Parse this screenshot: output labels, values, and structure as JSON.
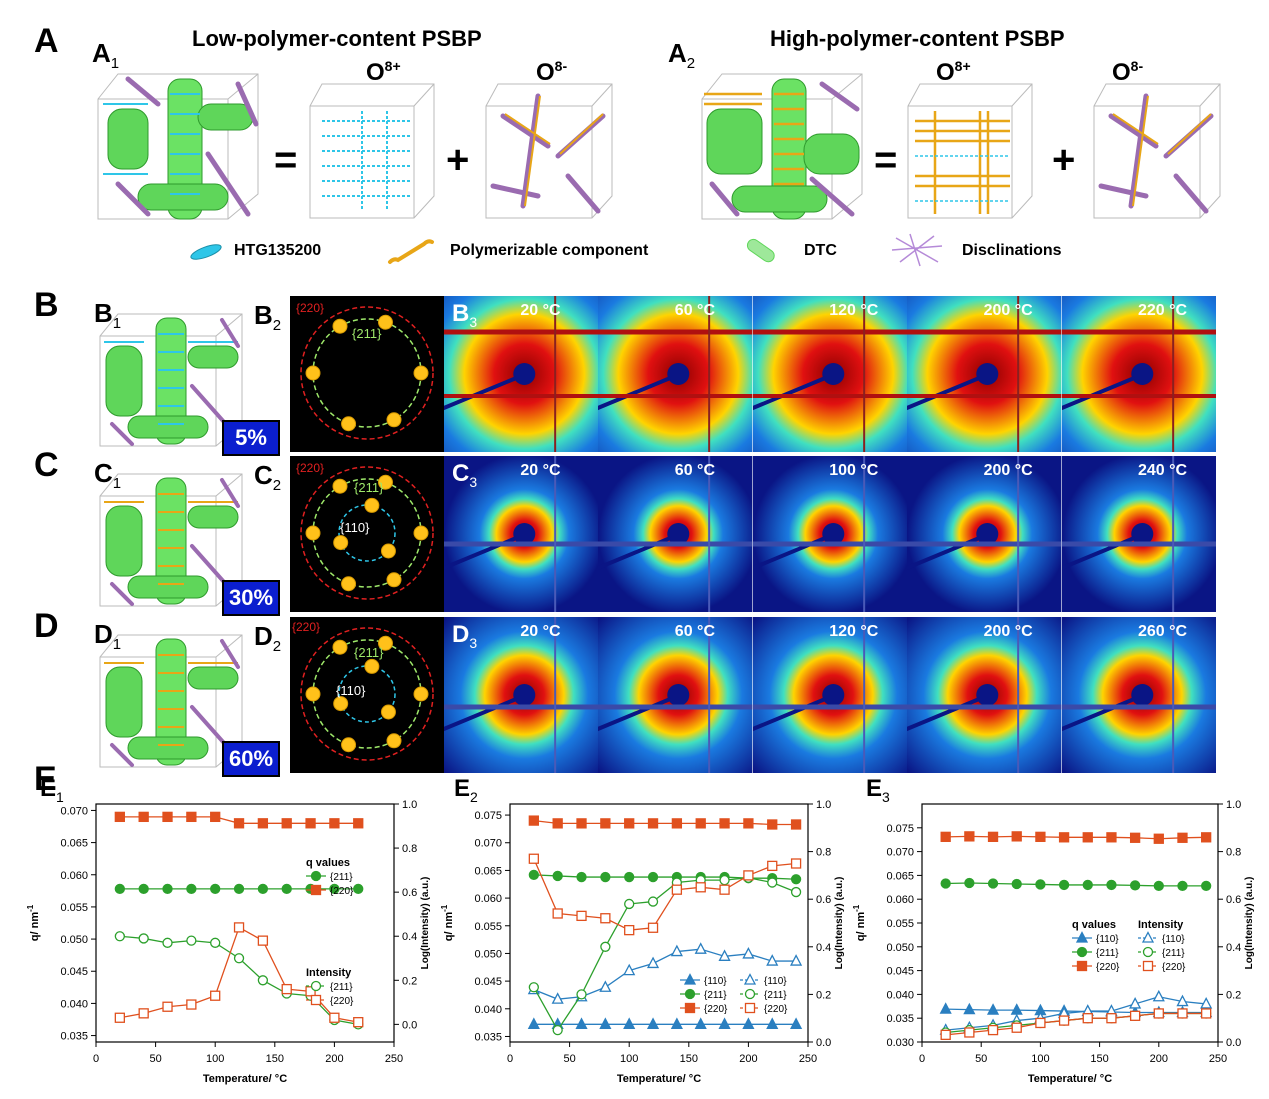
{
  "panel_letters": {
    "A": "A",
    "B": "B",
    "C": "C",
    "D": "D",
    "E": "E"
  },
  "section_a": {
    "a1": {
      "letter": "A",
      "sub": "1",
      "title": "Low-polymer-content PSBP"
    },
    "a2": {
      "letter": "A",
      "sub": "2",
      "title": "High-polymer-content PSBP"
    },
    "o_plus": {
      "base": "O",
      "sup": "8+"
    },
    "o_minus": {
      "base": "O",
      "sup": "8-"
    },
    "equals": "=",
    "plus": "+",
    "legend": [
      {
        "label": "HTG135200",
        "icon": "liquid-crystal-molecule-icon",
        "color": "#2ec6e8"
      },
      {
        "label": "Polymerizable component",
        "icon": "polymer-chain-icon",
        "color": "#e8a617"
      },
      {
        "label": "DTC",
        "icon": "double-twist-cylinder-icon",
        "color": "#5fd65a"
      },
      {
        "label": "Disclinations",
        "icon": "disclination-network-icon",
        "color": "#b58ad8"
      }
    ]
  },
  "rows": [
    {
      "letter": "B",
      "cube_label": {
        "letter": "B",
        "sub": "1"
      },
      "recip_label": {
        "letter": "B",
        "sub": "2"
      },
      "scatter_label": {
        "letter": "B",
        "sub": "3"
      },
      "percent": "5%",
      "recip": {
        "outer": "{220}",
        "mid": "{211}",
        "inner": ""
      },
      "temps": [
        "20 °C",
        "60 °C",
        "120 °C",
        "200 °C",
        "220 °C"
      ]
    },
    {
      "letter": "C",
      "cube_label": {
        "letter": "C",
        "sub": "1"
      },
      "recip_label": {
        "letter": "C",
        "sub": "2"
      },
      "scatter_label": {
        "letter": "C",
        "sub": "3"
      },
      "percent": "30%",
      "recip": {
        "outer": "{220}",
        "mid": "{211}",
        "inner": "{110}"
      },
      "temps": [
        "20 °C",
        "60 °C",
        "100 °C",
        "200 °C",
        "240 °C"
      ]
    },
    {
      "letter": "D",
      "cube_label": {
        "letter": "D",
        "sub": "1"
      },
      "recip_label": {
        "letter": "D",
        "sub": "2"
      },
      "scatter_label": {
        "letter": "D",
        "sub": "3"
      },
      "percent": "60%",
      "recip": {
        "outer": "{220}",
        "mid": "{211}",
        "inner": "{110}"
      },
      "temps": [
        "20 °C",
        "60 °C",
        "120 °C",
        "200 °C",
        "260 °C"
      ]
    }
  ],
  "chart_data": [
    {
      "type": "line",
      "panel": {
        "letter": "E",
        "sub": "1"
      },
      "xlabel": "Temperature/ °C",
      "ylabel_left": "q/ nm",
      "ylabel_left_sup": "-1",
      "ylabel_right": "Log(Intensity) (a.u.)",
      "xlim": [
        0,
        250
      ],
      "ylim_left": [
        0.034,
        0.071
      ],
      "ylim_right": [
        -0.08,
        1.0
      ],
      "xticks": [
        0,
        50,
        100,
        150,
        200,
        250
      ],
      "yticks_left": [
        0.035,
        0.04,
        0.045,
        0.05,
        0.055,
        0.06,
        0.065,
        0.07
      ],
      "yticks_right": [
        0.0,
        0.2,
        0.4,
        0.6,
        0.8,
        1.0
      ],
      "legends": [
        {
          "title": "q values",
          "position": "upper-right",
          "entries": [
            {
              "label": "{211}",
              "color": "#2ca02c",
              "marker": "circle",
              "filled": true
            },
            {
              "label": "{220}",
              "color": "#e0501e",
              "marker": "square",
              "filled": true
            }
          ]
        },
        {
          "title": "Intensity",
          "position": "middle-right",
          "entries": [
            {
              "label": "{211}",
              "color": "#2ca02c",
              "marker": "circle",
              "filled": false
            },
            {
              "label": "{220}",
              "color": "#e0501e",
              "marker": "square",
              "filled": false
            }
          ]
        }
      ],
      "series": [
        {
          "name": "{211}",
          "axis": "left",
          "color": "#2ca02c",
          "marker": "circle",
          "filled": true,
          "x": [
            20,
            40,
            60,
            80,
            100,
            120,
            140,
            160,
            180,
            200,
            220
          ],
          "y": [
            0.0578,
            0.0578,
            0.0578,
            0.0578,
            0.0578,
            0.0578,
            0.0578,
            0.0578,
            0.0578,
            0.0578,
            0.0578
          ]
        },
        {
          "name": "{220}",
          "axis": "left",
          "color": "#e0501e",
          "marker": "square",
          "filled": true,
          "x": [
            20,
            40,
            60,
            80,
            100,
            120,
            140,
            160,
            180,
            200,
            220
          ],
          "y": [
            0.069,
            0.069,
            0.069,
            0.069,
            0.069,
            0.068,
            0.068,
            0.068,
            0.068,
            0.068,
            0.068
          ]
        },
        {
          "name": "{211}",
          "axis": "right",
          "color": "#2ca02c",
          "marker": "circle",
          "filled": false,
          "x": [
            20,
            40,
            60,
            80,
            100,
            120,
            140,
            160,
            180,
            200,
            220
          ],
          "y": [
            0.4,
            0.39,
            0.37,
            0.38,
            0.37,
            0.3,
            0.2,
            0.14,
            0.13,
            0.02,
            0.0
          ]
        },
        {
          "name": "{220}",
          "axis": "right",
          "color": "#e0501e",
          "marker": "square",
          "filled": false,
          "x": [
            20,
            40,
            60,
            80,
            100,
            120,
            140,
            160,
            180,
            200,
            220
          ],
          "y": [
            0.03,
            0.05,
            0.08,
            0.09,
            0.13,
            0.44,
            0.38,
            0.16,
            0.15,
            0.03,
            0.01
          ]
        }
      ]
    },
    {
      "type": "line",
      "panel": {
        "letter": "E",
        "sub": "2"
      },
      "xlabel": "Temperature/ °C",
      "ylabel_left": "q/ nm",
      "ylabel_left_sup": "-1",
      "ylabel_right": "Log(Intensity) (a.u.)",
      "xlim": [
        0,
        250
      ],
      "ylim_left": [
        0.034,
        0.077
      ],
      "ylim_right": [
        0.0,
        1.0
      ],
      "xticks": [
        0,
        50,
        100,
        150,
        200,
        250
      ],
      "yticks_left": [
        0.035,
        0.04,
        0.045,
        0.05,
        0.055,
        0.06,
        0.065,
        0.07,
        0.075
      ],
      "yticks_right": [
        0.0,
        0.2,
        0.4,
        0.6,
        0.8,
        1.0
      ],
      "legends": [
        {
          "title": "",
          "position": "lower-right",
          "entries": [
            {
              "label": "{110}",
              "color": "#2a7fc0",
              "marker": "triangle",
              "filled": true
            },
            {
              "label": "{110}",
              "color": "#2a7fc0",
              "marker": "triangle",
              "filled": false
            },
            {
              "label": "{211}",
              "color": "#2ca02c",
              "marker": "circle",
              "filled": true
            },
            {
              "label": "{211}",
              "color": "#2ca02c",
              "marker": "circle",
              "filled": false
            },
            {
              "label": "{220}",
              "color": "#e0501e",
              "marker": "square",
              "filled": true
            },
            {
              "label": "{220}",
              "color": "#e0501e",
              "marker": "square",
              "filled": false
            }
          ]
        }
      ],
      "series": [
        {
          "name": "{110}",
          "axis": "left",
          "color": "#2a7fc0",
          "marker": "triangle",
          "filled": true,
          "x": [
            20,
            40,
            60,
            80,
            100,
            120,
            140,
            160,
            180,
            200,
            220,
            240
          ],
          "y": [
            0.0372,
            0.0372,
            0.0372,
            0.0372,
            0.0372,
            0.0372,
            0.0372,
            0.0372,
            0.0372,
            0.0372,
            0.0372,
            0.0372
          ]
        },
        {
          "name": "{211}",
          "axis": "left",
          "color": "#2ca02c",
          "marker": "circle",
          "filled": true,
          "x": [
            20,
            40,
            60,
            80,
            100,
            120,
            140,
            160,
            180,
            200,
            220,
            240
          ],
          "y": [
            0.0642,
            0.064,
            0.0638,
            0.0638,
            0.0638,
            0.0638,
            0.0638,
            0.0638,
            0.0638,
            0.0636,
            0.0636,
            0.0634
          ]
        },
        {
          "name": "{220}",
          "axis": "left",
          "color": "#e0501e",
          "marker": "square",
          "filled": true,
          "x": [
            20,
            40,
            60,
            80,
            100,
            120,
            140,
            160,
            180,
            200,
            220,
            240
          ],
          "y": [
            0.074,
            0.0735,
            0.0735,
            0.0735,
            0.0735,
            0.0735,
            0.0735,
            0.0735,
            0.0735,
            0.0735,
            0.0733,
            0.0733
          ]
        },
        {
          "name": "{110}",
          "axis": "right",
          "color": "#2a7fc0",
          "marker": "triangle",
          "filled": false,
          "x": [
            20,
            40,
            60,
            80,
            100,
            120,
            140,
            160,
            180,
            200,
            220,
            240
          ],
          "y": [
            0.22,
            0.18,
            0.19,
            0.23,
            0.3,
            0.33,
            0.38,
            0.39,
            0.36,
            0.37,
            0.34,
            0.34
          ]
        },
        {
          "name": "{211}",
          "axis": "right",
          "color": "#2ca02c",
          "marker": "circle",
          "filled": false,
          "x": [
            20,
            40,
            60,
            80,
            100,
            120,
            140,
            160,
            180,
            200,
            220,
            240
          ],
          "y": [
            0.23,
            0.05,
            0.2,
            0.4,
            0.58,
            0.59,
            0.67,
            0.68,
            0.68,
            0.69,
            0.67,
            0.63
          ]
        },
        {
          "name": "{220}",
          "axis": "right",
          "color": "#e0501e",
          "marker": "square",
          "filled": false,
          "x": [
            20,
            40,
            60,
            80,
            100,
            120,
            140,
            160,
            180,
            200,
            220,
            240
          ],
          "y": [
            0.77,
            0.54,
            0.53,
            0.52,
            0.47,
            0.48,
            0.64,
            0.65,
            0.64,
            0.7,
            0.74,
            0.75
          ]
        }
      ]
    },
    {
      "type": "line",
      "panel": {
        "letter": "E",
        "sub": "3"
      },
      "xlabel": "Temperature/ °C",
      "ylabel_left": "q/ nm",
      "ylabel_left_sup": "-1",
      "ylabel_right": "Log(Intensity) (a.u.)",
      "xlim": [
        0,
        250
      ],
      "ylim_left": [
        0.03,
        0.08
      ],
      "ylim_right": [
        0.0,
        1.0
      ],
      "xticks": [
        0,
        50,
        100,
        150,
        200,
        250
      ],
      "yticks_left": [
        0.03,
        0.035,
        0.04,
        0.045,
        0.05,
        0.055,
        0.06,
        0.065,
        0.07,
        0.075
      ],
      "yticks_right": [
        0.0,
        0.2,
        0.4,
        0.6,
        0.8,
        1.0
      ],
      "legends": [
        {
          "title": "q values",
          "position": "middle-center",
          "entries": [
            {
              "label": "{110}",
              "color": "#2a7fc0",
              "marker": "triangle",
              "filled": true
            },
            {
              "label": "{211}",
              "color": "#2ca02c",
              "marker": "circle",
              "filled": true
            },
            {
              "label": "{220}",
              "color": "#e0501e",
              "marker": "square",
              "filled": true
            }
          ]
        },
        {
          "title": "Intensity",
          "position": "middle-right",
          "entries": [
            {
              "label": "{110}",
              "color": "#2a7fc0",
              "marker": "triangle",
              "filled": false
            },
            {
              "label": "{211}",
              "color": "#2ca02c",
              "marker": "circle",
              "filled": false
            },
            {
              "label": "{220}",
              "color": "#e0501e",
              "marker": "square",
              "filled": false
            }
          ]
        }
      ],
      "series": [
        {
          "name": "{110}",
          "axis": "left",
          "color": "#2a7fc0",
          "marker": "triangle",
          "filled": true,
          "x": [
            20,
            40,
            60,
            80,
            100,
            120,
            140,
            160,
            180,
            200,
            220,
            240
          ],
          "y": [
            0.0369,
            0.0368,
            0.0367,
            0.0367,
            0.0366,
            0.0365,
            0.0364,
            0.0363,
            0.0362,
            0.0362,
            0.0362,
            0.0362
          ]
        },
        {
          "name": "{211}",
          "axis": "left",
          "color": "#2ca02c",
          "marker": "circle",
          "filled": true,
          "x": [
            20,
            40,
            60,
            80,
            100,
            120,
            140,
            160,
            180,
            200,
            220,
            240
          ],
          "y": [
            0.0633,
            0.0634,
            0.0633,
            0.0632,
            0.0631,
            0.063,
            0.063,
            0.063,
            0.0629,
            0.0628,
            0.0628,
            0.0628
          ]
        },
        {
          "name": "{220}",
          "axis": "left",
          "color": "#e0501e",
          "marker": "square",
          "filled": true,
          "x": [
            20,
            40,
            60,
            80,
            100,
            120,
            140,
            160,
            180,
            200,
            220,
            240
          ],
          "y": [
            0.0731,
            0.0732,
            0.0731,
            0.0732,
            0.0731,
            0.073,
            0.073,
            0.073,
            0.0729,
            0.0727,
            0.0729,
            0.073
          ]
        },
        {
          "name": "{110}",
          "axis": "right",
          "color": "#2a7fc0",
          "marker": "triangle",
          "filled": false,
          "x": [
            20,
            40,
            60,
            80,
            100,
            120,
            140,
            160,
            180,
            200,
            220,
            240
          ],
          "y": [
            0.05,
            0.06,
            0.07,
            0.09,
            0.1,
            0.12,
            0.13,
            0.13,
            0.16,
            0.19,
            0.17,
            0.16
          ]
        },
        {
          "name": "{211}",
          "axis": "right",
          "color": "#2ca02c",
          "marker": "circle",
          "filled": false,
          "x": [
            20,
            40,
            60,
            80,
            100,
            120,
            140,
            160,
            180,
            200,
            220,
            240
          ],
          "y": [
            0.04,
            0.05,
            0.06,
            0.07,
            0.08,
            0.09,
            0.1,
            0.1,
            0.11,
            0.12,
            0.12,
            0.12
          ]
        },
        {
          "name": "{220}",
          "axis": "right",
          "color": "#e0501e",
          "marker": "square",
          "filled": false,
          "x": [
            20,
            40,
            60,
            80,
            100,
            120,
            140,
            160,
            180,
            200,
            220,
            240
          ],
          "y": [
            0.03,
            0.04,
            0.05,
            0.06,
            0.08,
            0.09,
            0.1,
            0.1,
            0.11,
            0.12,
            0.12,
            0.12
          ]
        }
      ]
    }
  ]
}
